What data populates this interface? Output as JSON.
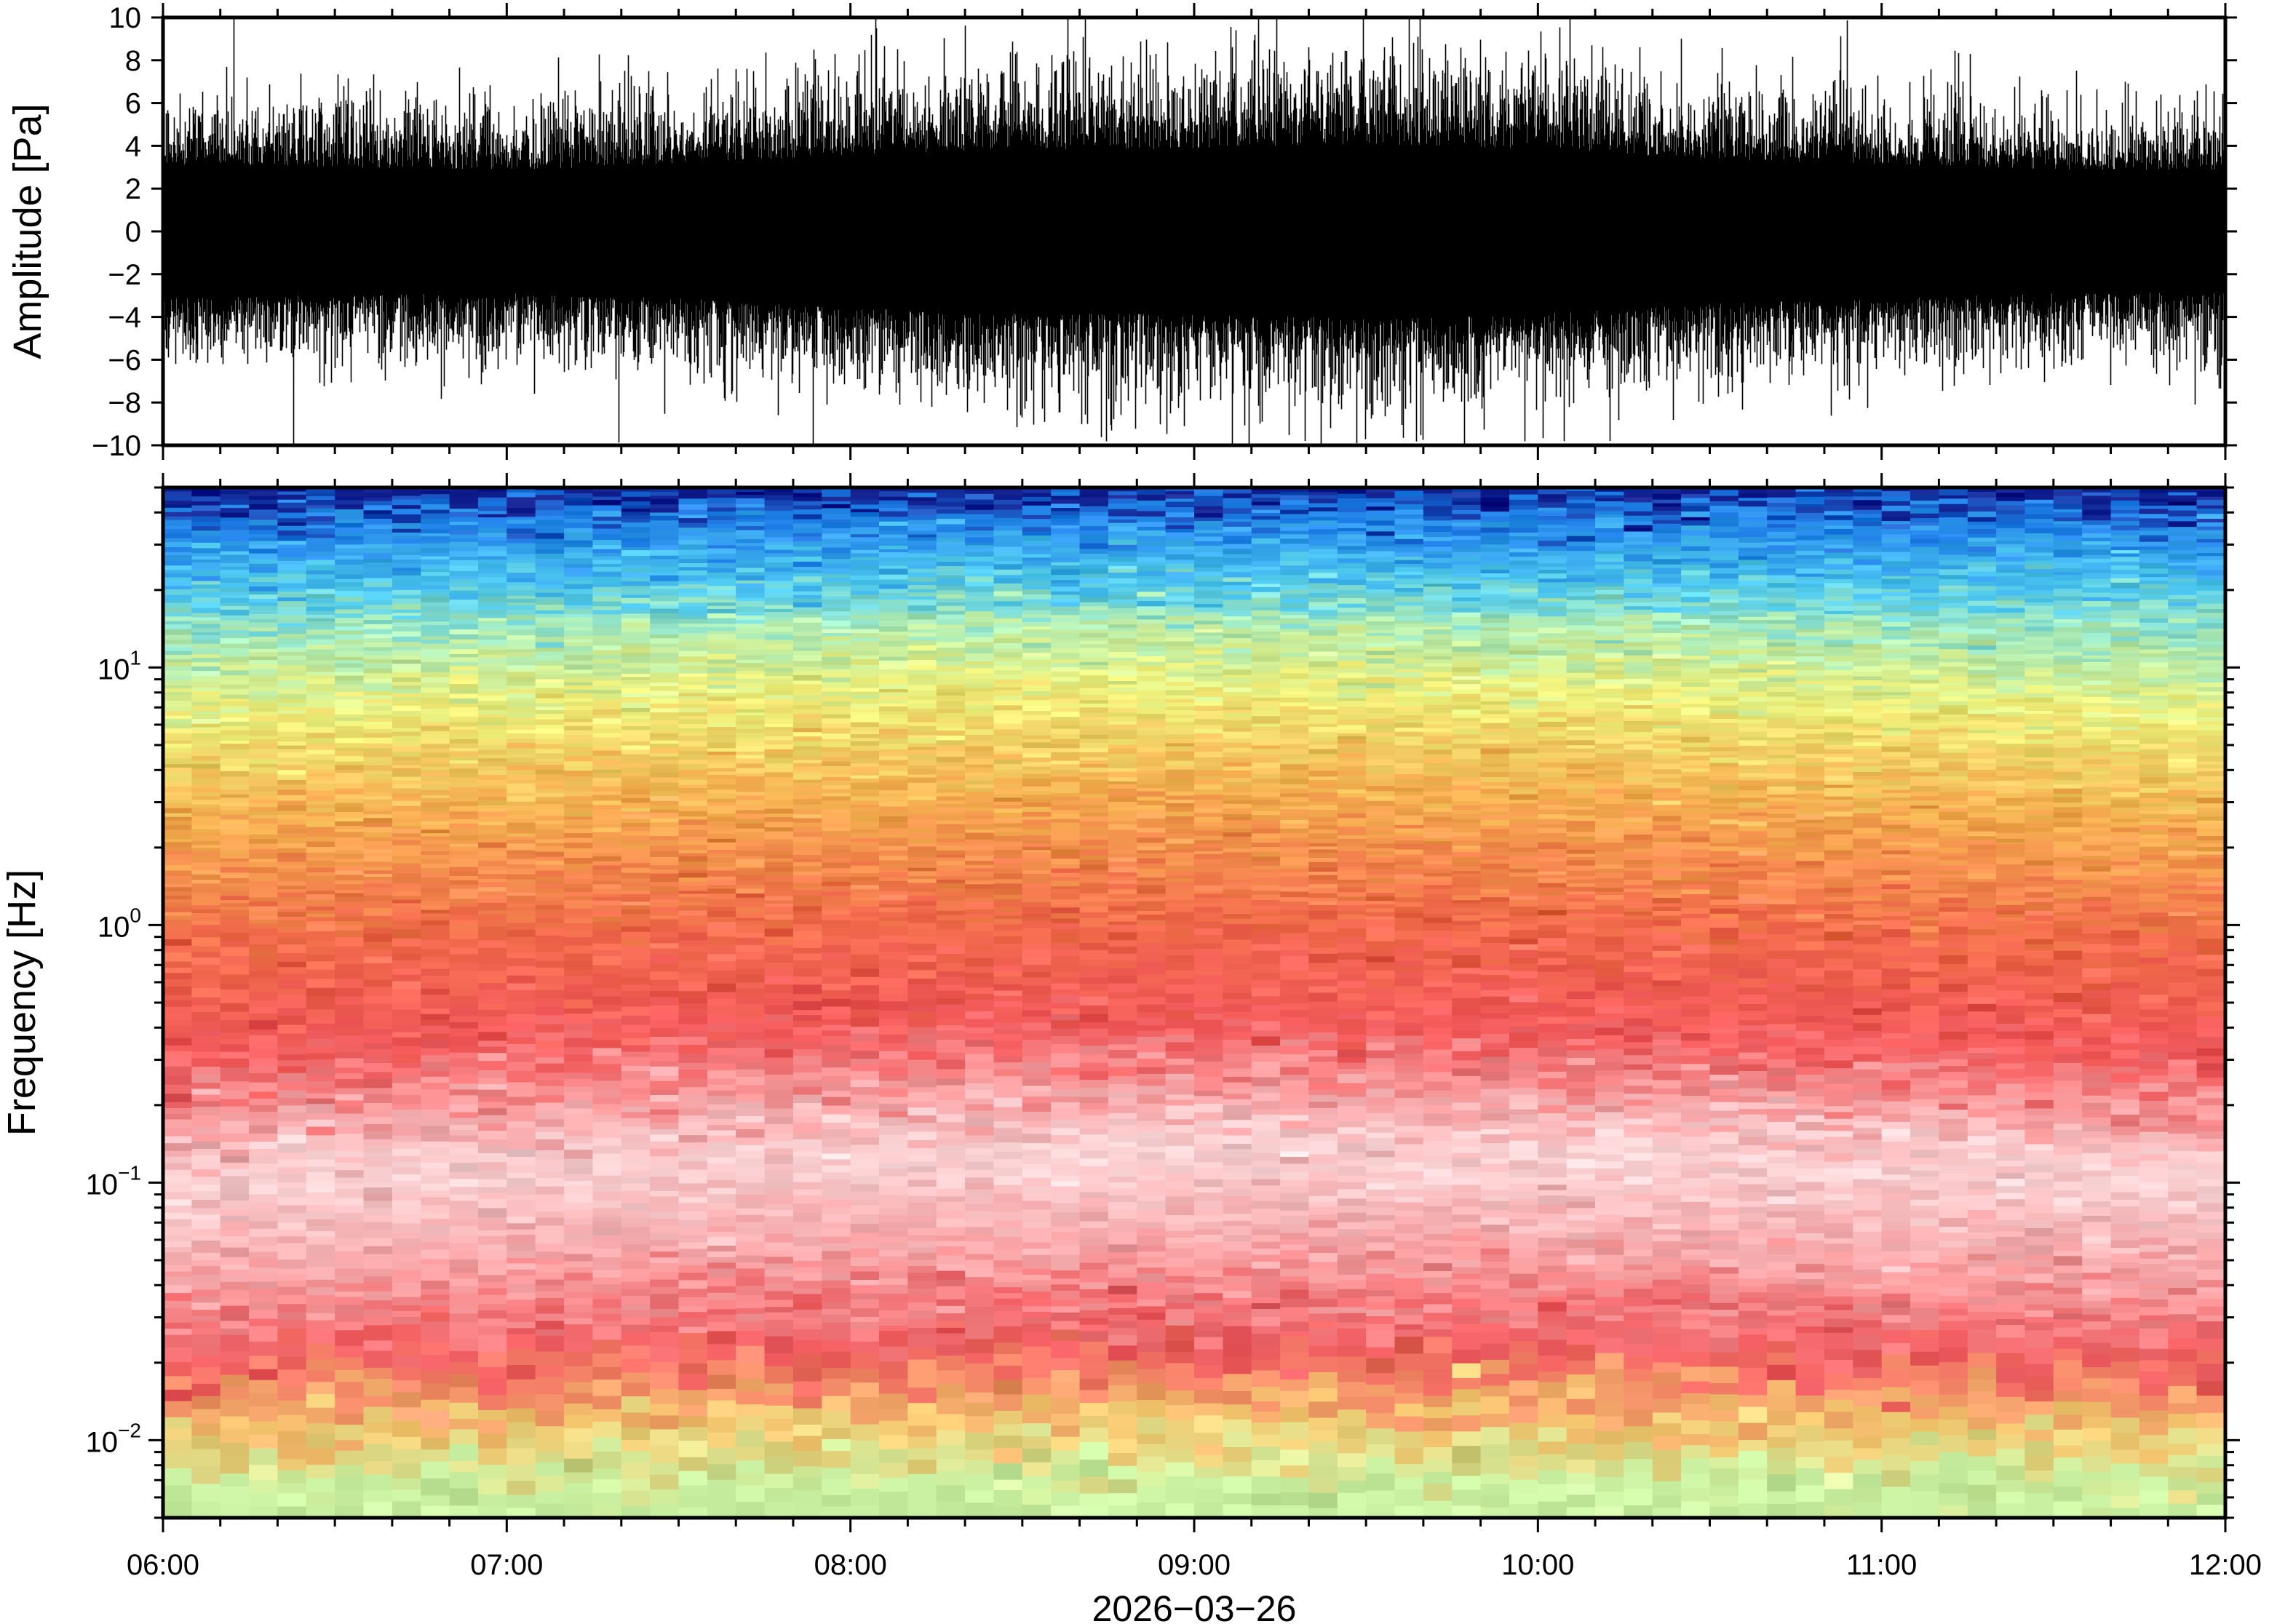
{
  "chart_data": [
    {
      "type": "line",
      "ylabel": "Amplitude [Pa]",
      "ylim": [
        -10,
        10
      ],
      "yticks": [
        -10,
        -8,
        -6,
        -4,
        -2,
        0,
        2,
        4,
        6,
        8,
        10
      ],
      "ytick_labels": [
        "−10",
        "−8",
        "−6",
        "−4",
        "−2",
        "0",
        "2",
        "4",
        "6",
        "8",
        "10"
      ],
      "xlim": [
        "2026-03-26 06:00",
        "2026-03-26 12:00"
      ],
      "line_color": "#000000",
      "envelope_abs_max_pa": [
        {
          "t": "06:00",
          "amp": 6.5
        },
        {
          "t": "07:00",
          "amp": 6.0
        },
        {
          "t": "07:30",
          "amp": 6.5
        },
        {
          "t": "08:00",
          "amp": 7.5
        },
        {
          "t": "08:30",
          "amp": 8.0
        },
        {
          "t": "09:00",
          "amp": 8.0
        },
        {
          "t": "09:30",
          "amp": 8.5
        },
        {
          "t": "10:00",
          "amp": 8.0
        },
        {
          "t": "10:30",
          "amp": 7.0
        },
        {
          "t": "11:00",
          "amp": 6.5
        },
        {
          "t": "11:30",
          "amp": 6.0
        },
        {
          "t": "12:00",
          "amp": 6.0
        }
      ]
    },
    {
      "type": "heatmap",
      "ylabel": "Frequency [Hz]",
      "yscale": "log",
      "ylim": [
        0.005,
        50
      ],
      "yticks": [
        {
          "value": 0.01,
          "base": "10",
          "exp": "−2"
        },
        {
          "value": 0.1,
          "base": "10",
          "exp": "−1"
        },
        {
          "value": 1,
          "base": "10",
          "exp": "0"
        },
        {
          "value": 10,
          "base": "10",
          "exp": "1"
        }
      ],
      "xlabel": "2026−03−26",
      "xlim": [
        "2026-03-26 06:00",
        "2026-03-26 12:00"
      ],
      "xticks": [
        "06:00",
        "07:00",
        "08:00",
        "09:00",
        "10:00",
        "11:00",
        "12:00"
      ],
      "colormap": [
        "#0d1a8a",
        "#1565e0",
        "#2aa8f0",
        "#5ad8e0",
        "#a8f0b0",
        "#e6f07a",
        "#f5d060",
        "#f5a040",
        "#f06a4a",
        "#f2585a",
        "#f8a8aa",
        "#fde8ea"
      ],
      "dominant_colors_by_frequency": [
        {
          "freq_hz": 45,
          "color": "#0d1a8a"
        },
        {
          "freq_hz": 35,
          "color": "#1f7fe8"
        },
        {
          "freq_hz": 20,
          "color": "#4cc8ee"
        },
        {
          "freq_hz": 12,
          "color": "#a8eab8"
        },
        {
          "freq_hz": 6,
          "color": "#eef07a"
        },
        {
          "freq_hz": 2.5,
          "color": "#f5b050"
        },
        {
          "freq_hz": 0.8,
          "color": "#f06a4a"
        },
        {
          "freq_hz": 0.3,
          "color": "#f2585a"
        },
        {
          "freq_hz": 0.1,
          "color": "#fbd6d8"
        },
        {
          "freq_hz": 0.04,
          "color": "#f8a4a6"
        },
        {
          "freq_hz": 0.02,
          "color": "#ef5a5e"
        },
        {
          "freq_hz": 0.01,
          "color": "#f5c870"
        },
        {
          "freq_hz": 0.006,
          "color": "#c8f0a0"
        }
      ]
    }
  ]
}
